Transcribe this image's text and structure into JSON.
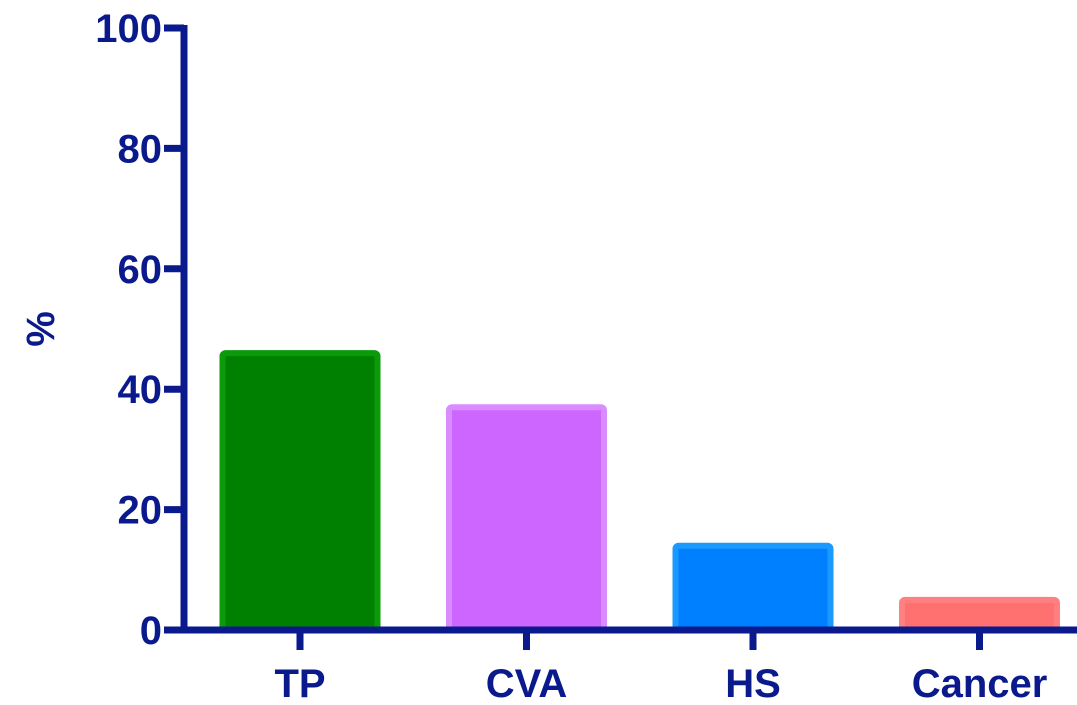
{
  "chart_data": {
    "type": "bar",
    "title": "",
    "xlabel": "",
    "ylabel": "%",
    "ylim": [
      0,
      100
    ],
    "yticks": [
      "0",
      "20",
      "40",
      "60",
      "80",
      "100"
    ],
    "categories": [
      "TP",
      "CVA",
      "HS",
      "Cancer"
    ],
    "values": [
      46,
      37,
      14,
      5
    ],
    "colors": {
      "axis": "#0a1a8c",
      "bars": [
        {
          "fill": "#008000",
          "edge": "#0a9a0a"
        },
        {
          "fill": "#cc66ff",
          "edge": "#d98cff"
        },
        {
          "fill": "#0080ff",
          "edge": "#1a99ff"
        },
        {
          "fill": "#ff7070",
          "edge": "#ff8080"
        }
      ]
    },
    "grid": false,
    "legend": "none"
  }
}
